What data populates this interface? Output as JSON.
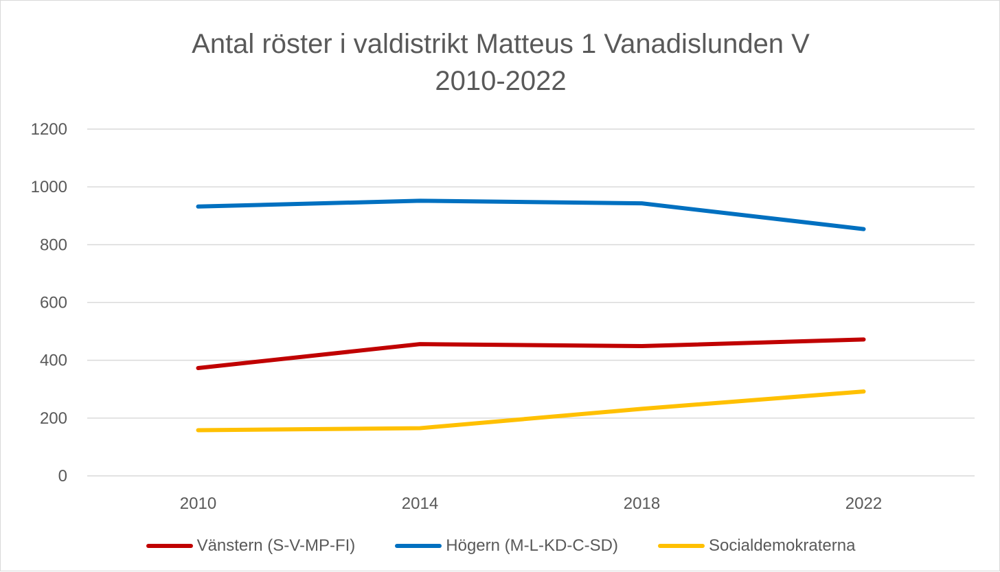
{
  "chart_data": {
    "type": "line",
    "title_lines": [
      "Antal röster i valdistrikt Matteus 1 Vanadislunden V",
      "2010-2022"
    ],
    "x": [
      "2010",
      "2014",
      "2018",
      "2022"
    ],
    "ylim": [
      0,
      1200
    ],
    "yticks": [
      0,
      200,
      400,
      600,
      800,
      1000,
      1200
    ],
    "grid": true,
    "legend_position": "bottom",
    "series": [
      {
        "name": "Vänstern (S-V-MP-FI)",
        "color": "#c00000",
        "values": [
          373,
          456,
          449,
          472
        ]
      },
      {
        "name": "Högern (M-L-KD-C-SD)",
        "color": "#0070c0",
        "values": [
          932,
          952,
          943,
          854
        ]
      },
      {
        "name": "Socialdemokraterna",
        "color": "#ffc000",
        "values": [
          158,
          165,
          232,
          292
        ]
      }
    ]
  }
}
